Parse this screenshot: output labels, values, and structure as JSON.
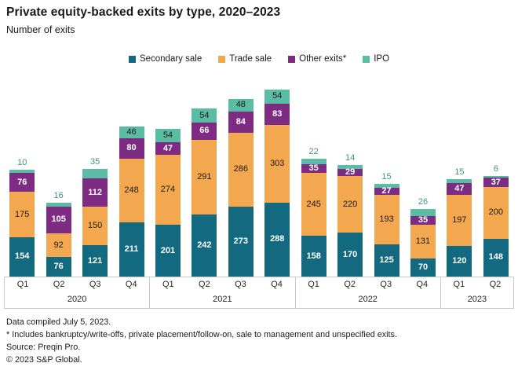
{
  "header": {
    "title": "Private equity-backed exits by type, 2020–2023",
    "subtitle": "Number of exits"
  },
  "chart_data": {
    "type": "bar",
    "stacked": true,
    "title": "Private equity-backed exits by type, 2020–2023",
    "ylabel": "Number of exits",
    "legend_position": "top-center",
    "grid": false,
    "categories": [
      "Q1",
      "Q2",
      "Q3",
      "Q4",
      "Q1",
      "Q2",
      "Q3",
      "Q4",
      "Q1",
      "Q2",
      "Q3",
      "Q4",
      "Q1",
      "Q2"
    ],
    "groups": [
      {
        "year": "2020",
        "quarters": [
          "Q1",
          "Q2",
          "Q3",
          "Q4"
        ]
      },
      {
        "year": "2021",
        "quarters": [
          "Q1",
          "Q2",
          "Q3",
          "Q4"
        ]
      },
      {
        "year": "2022",
        "quarters": [
          "Q1",
          "Q2",
          "Q3",
          "Q4"
        ]
      },
      {
        "year": "2023",
        "quarters": [
          "Q1",
          "Q2"
        ]
      }
    ],
    "series": [
      {
        "name": "Secondary sale",
        "color": "#13697F",
        "label_color": "#ffffff",
        "values": [
          154,
          76,
          121,
          211,
          201,
          242,
          273,
          288,
          158,
          170,
          125,
          70,
          120,
          148
        ]
      },
      {
        "name": "Trade sale",
        "color": "#F3A74E",
        "label_color": "#1a1a1a",
        "values": [
          175,
          92,
          150,
          248,
          274,
          291,
          286,
          303,
          245,
          220,
          193,
          131,
          197,
          200
        ]
      },
      {
        "name": "Other exits*",
        "color": "#7E2B83",
        "label_color": "#ffffff",
        "values": [
          76,
          105,
          112,
          80,
          47,
          66,
          84,
          83,
          35,
          29,
          27,
          35,
          47,
          37
        ]
      },
      {
        "name": "IPO",
        "color": "#5ABCA2",
        "label_color": "#1a1a1a",
        "outside_label_color": "#3F9480",
        "values": [
          10,
          16,
          35,
          46,
          54,
          54,
          48,
          54,
          22,
          14,
          15,
          26,
          15,
          6
        ]
      }
    ]
  },
  "footer": {
    "lines": [
      "Data compiled July 5, 2023.",
      "* Includes bankruptcy/write-offs, private placement/follow-on, sale to management and unspecified exits.",
      "Source: Preqin Pro.",
      "© 2023 S&P Global."
    ]
  }
}
